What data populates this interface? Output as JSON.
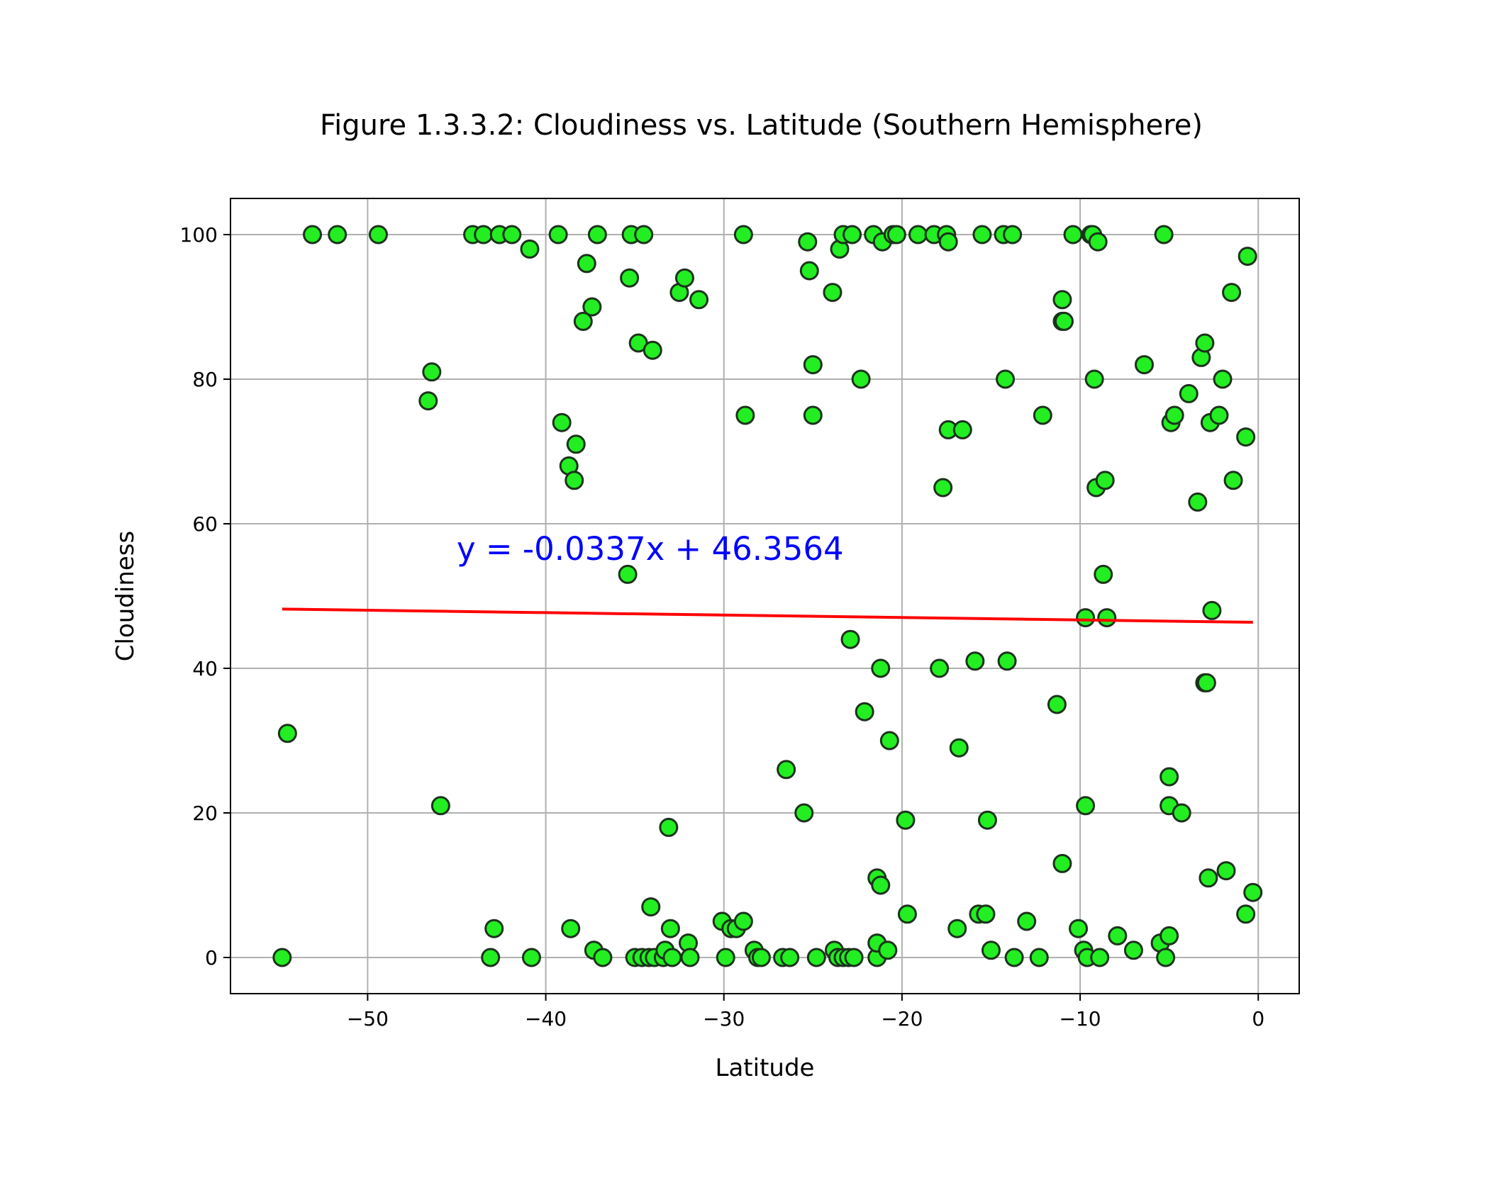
{
  "chart_data": {
    "type": "scatter",
    "title": "Figure 1.3.3.2: Cloudiness vs. Latitude (Southern Hemisphere)",
    "xlabel": "Latitude",
    "ylabel": "Cloudiness",
    "xlim": [
      -57.7,
      2.3
    ],
    "ylim": [
      -5,
      105
    ],
    "xticks": [
      -50,
      -40,
      -30,
      -20,
      -10,
      0
    ],
    "yticks": [
      0,
      20,
      40,
      60,
      80,
      100
    ],
    "xtick_labels": [
      "−50",
      "−40",
      "−30",
      "−20",
      "−10",
      "0"
    ],
    "ytick_labels": [
      "0",
      "20",
      "40",
      "60",
      "80",
      "100"
    ],
    "grid": true,
    "marker_color": "#22ee22",
    "marker_edge_color": "#1a331a",
    "line_color": "#ff0000",
    "annotation_color": "#0000ff",
    "points": [
      [
        -54.8,
        0
      ],
      [
        -54.5,
        31
      ],
      [
        -53.1,
        100
      ],
      [
        -51.7,
        100
      ],
      [
        -49.4,
        100
      ],
      [
        -46.6,
        77
      ],
      [
        -46.4,
        81
      ],
      [
        -45.9,
        21
      ],
      [
        -44.1,
        100
      ],
      [
        -43.5,
        100
      ],
      [
        -43.1,
        0
      ],
      [
        -42.9,
        4
      ],
      [
        -42.6,
        100
      ],
      [
        -41.9,
        100
      ],
      [
        -40.9,
        98
      ],
      [
        -40.8,
        0
      ],
      [
        -39.3,
        100
      ],
      [
        -39.1,
        74
      ],
      [
        -38.7,
        68
      ],
      [
        -38.6,
        4
      ],
      [
        -38.4,
        66
      ],
      [
        -38.3,
        71
      ],
      [
        -37.9,
        88
      ],
      [
        -37.7,
        96
      ],
      [
        -37.4,
        90
      ],
      [
        -37.3,
        1
      ],
      [
        -37.1,
        100
      ],
      [
        -36.8,
        0
      ],
      [
        -35.4,
        53
      ],
      [
        -35.3,
        94
      ],
      [
        -35.2,
        100
      ],
      [
        -35.0,
        0
      ],
      [
        -34.8,
        85
      ],
      [
        -34.6,
        0
      ],
      [
        -34.5,
        100
      ],
      [
        -34.2,
        0
      ],
      [
        -34.1,
        7
      ],
      [
        -34.0,
        84
      ],
      [
        -33.9,
        0
      ],
      [
        -33.4,
        0
      ],
      [
        -33.3,
        1
      ],
      [
        -33.1,
        18
      ],
      [
        -33.0,
        4
      ],
      [
        -32.9,
        0
      ],
      [
        -32.5,
        92
      ],
      [
        -32.2,
        94
      ],
      [
        -32.0,
        2
      ],
      [
        -31.9,
        0
      ],
      [
        -31.4,
        91
      ],
      [
        -30.1,
        5
      ],
      [
        -29.9,
        0
      ],
      [
        -29.6,
        4
      ],
      [
        -29.3,
        4
      ],
      [
        -28.9,
        100
      ],
      [
        -28.9,
        5
      ],
      [
        -28.8,
        75
      ],
      [
        -28.3,
        1
      ],
      [
        -28.1,
        0
      ],
      [
        -27.9,
        0
      ],
      [
        -26.7,
        0
      ],
      [
        -26.5,
        26
      ],
      [
        -26.3,
        0
      ],
      [
        -25.5,
        20
      ],
      [
        -25.3,
        99
      ],
      [
        -25.2,
        95
      ],
      [
        -25.0,
        82
      ],
      [
        -25.0,
        75
      ],
      [
        -24.8,
        0
      ],
      [
        -23.9,
        92
      ],
      [
        -23.8,
        1
      ],
      [
        -23.6,
        0
      ],
      [
        -23.5,
        98
      ],
      [
        -23.3,
        0
      ],
      [
        -23.3,
        100
      ],
      [
        -23.0,
        0
      ],
      [
        -22.9,
        44
      ],
      [
        -22.8,
        100
      ],
      [
        -22.7,
        0
      ],
      [
        -22.3,
        80
      ],
      [
        -22.1,
        34
      ],
      [
        -21.6,
        100
      ],
      [
        -21.4,
        0
      ],
      [
        -21.4,
        11
      ],
      [
        -21.4,
        2
      ],
      [
        -21.2,
        10
      ],
      [
        -21.2,
        40
      ],
      [
        -21.1,
        99
      ],
      [
        -20.8,
        1
      ],
      [
        -20.7,
        30
      ],
      [
        -20.5,
        100
      ],
      [
        -20.3,
        100
      ],
      [
        -19.8,
        19
      ],
      [
        -19.7,
        6
      ],
      [
        -19.1,
        100
      ],
      [
        -18.2,
        100
      ],
      [
        -17.9,
        40
      ],
      [
        -17.7,
        65
      ],
      [
        -17.5,
        100
      ],
      [
        -17.4,
        73
      ],
      [
        -17.4,
        99
      ],
      [
        -16.9,
        4
      ],
      [
        -16.8,
        29
      ],
      [
        -16.6,
        73
      ],
      [
        -15.9,
        41
      ],
      [
        -15.7,
        6
      ],
      [
        -15.5,
        100
      ],
      [
        -15.3,
        6
      ],
      [
        -15.2,
        19
      ],
      [
        -15.0,
        1
      ],
      [
        -14.3,
        100
      ],
      [
        -14.2,
        80
      ],
      [
        -14.1,
        41
      ],
      [
        -13.8,
        100
      ],
      [
        -13.7,
        0
      ],
      [
        -13.0,
        5
      ],
      [
        -12.3,
        0
      ],
      [
        -12.1,
        75
      ],
      [
        -11.3,
        35
      ],
      [
        -11.0,
        13
      ],
      [
        -11.0,
        91
      ],
      [
        -11.0,
        88
      ],
      [
        -10.9,
        88
      ],
      [
        -10.4,
        100
      ],
      [
        -10.1,
        4
      ],
      [
        -9.8,
        1
      ],
      [
        -9.7,
        21
      ],
      [
        -9.7,
        47
      ],
      [
        -9.6,
        0
      ],
      [
        -9.4,
        100
      ],
      [
        -9.3,
        100
      ],
      [
        -9.2,
        80
      ],
      [
        -9.1,
        65
      ],
      [
        -9.0,
        99
      ],
      [
        -8.9,
        0
      ],
      [
        -8.7,
        53
      ],
      [
        -8.6,
        66
      ],
      [
        -8.5,
        47
      ],
      [
        -7.9,
        3
      ],
      [
        -7.0,
        1
      ],
      [
        -6.4,
        82
      ],
      [
        -5.5,
        2
      ],
      [
        -5.3,
        100
      ],
      [
        -5.2,
        0
      ],
      [
        -5.0,
        3
      ],
      [
        -5.0,
        25
      ],
      [
        -5.0,
        21
      ],
      [
        -4.9,
        74
      ],
      [
        -4.7,
        75
      ],
      [
        -4.3,
        20
      ],
      [
        -3.9,
        78
      ],
      [
        -3.4,
        63
      ],
      [
        -3.2,
        83
      ],
      [
        -3.0,
        85
      ],
      [
        -3.0,
        38
      ],
      [
        -2.9,
        38
      ],
      [
        -2.8,
        11
      ],
      [
        -2.7,
        74
      ],
      [
        -2.6,
        48
      ],
      [
        -2.2,
        75
      ],
      [
        -2.0,
        80
      ],
      [
        -1.8,
        12
      ],
      [
        -1.5,
        92
      ],
      [
        -1.4,
        66
      ],
      [
        -0.7,
        72
      ],
      [
        -0.7,
        6
      ],
      [
        -0.6,
        97
      ],
      [
        -0.3,
        9
      ]
    ],
    "regression": {
      "x_range": [
        -54.8,
        -0.3
      ],
      "slope": -0.0337,
      "intercept": 46.3564,
      "equation": "y = -0.0337x + 46.3564",
      "label_at": [
        -45,
        55
      ]
    }
  }
}
